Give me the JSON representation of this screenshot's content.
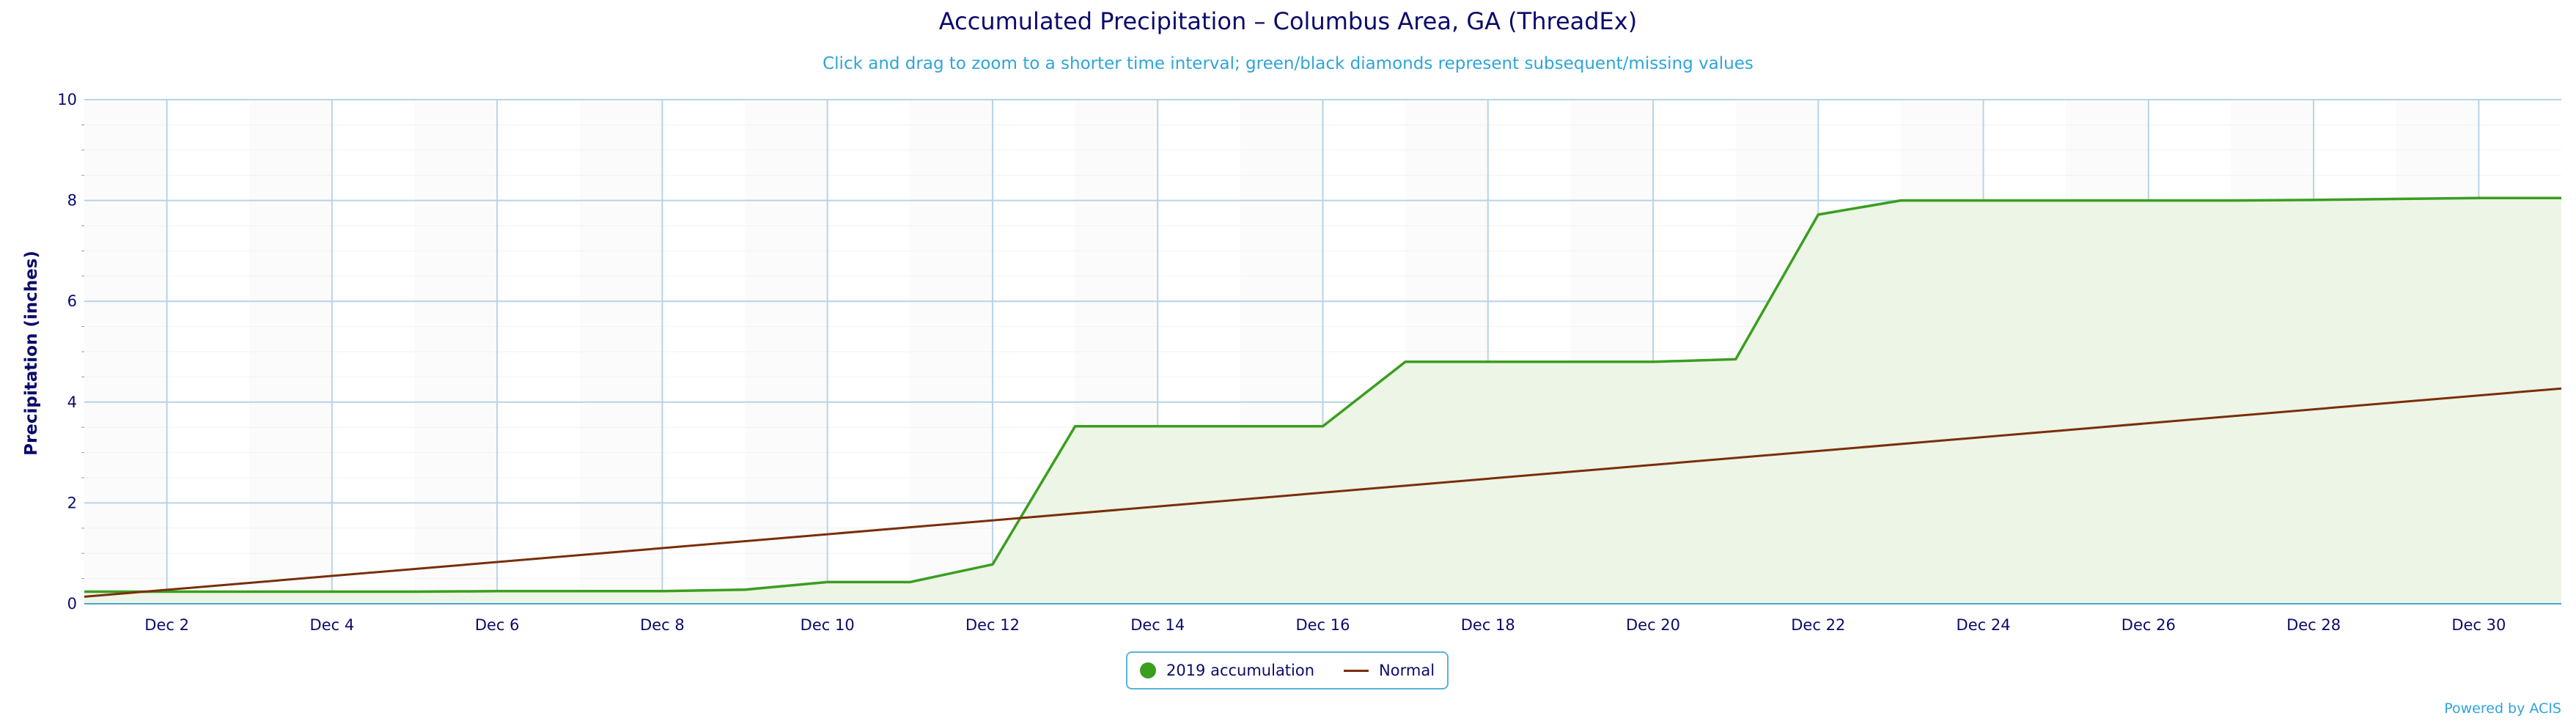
{
  "chart_data": {
    "type": "area",
    "title": "Accumulated Precipitation – Columbus Area, GA (ThreadEx)",
    "subtitle": "Click and drag to zoom to a shorter time interval; green/black diamonds represent subsequent/missing values",
    "ylabel": "Precipitation (inches)",
    "xlabel": "",
    "ylim": [
      0,
      10
    ],
    "yticks": [
      0,
      2,
      4,
      6,
      8,
      10
    ],
    "xlim": [
      1,
      31
    ],
    "xticks": [
      2,
      4,
      6,
      8,
      10,
      12,
      14,
      16,
      18,
      20,
      22,
      24,
      26,
      28,
      30
    ],
    "xtick_labels": [
      "Dec 2",
      "Dec 4",
      "Dec 6",
      "Dec 8",
      "Dec 10",
      "Dec 12",
      "Dec 14",
      "Dec 16",
      "Dec 18",
      "Dec 20",
      "Dec 22",
      "Dec 24",
      "Dec 26",
      "Dec 28",
      "Dec 30"
    ],
    "grid": true,
    "legend_position": "bottom-center",
    "series": [
      {
        "name": "2019 accumulation",
        "color": "#3a9e1f",
        "fill": "#edf5e6",
        "x": [
          1,
          2,
          3,
          4,
          5,
          6,
          7,
          8,
          9,
          10,
          11,
          12,
          13,
          14,
          15,
          16,
          17,
          18,
          19,
          20,
          21,
          22,
          23,
          24,
          25,
          26,
          27,
          28,
          29,
          30,
          31
        ],
        "values": [
          0.24,
          0.24,
          0.24,
          0.24,
          0.24,
          0.25,
          0.25,
          0.25,
          0.28,
          0.43,
          0.43,
          0.78,
          3.52,
          3.52,
          3.52,
          3.52,
          4.8,
          4.8,
          4.8,
          4.8,
          4.85,
          7.72,
          8.0,
          8.0,
          8.0,
          8.0,
          8.0,
          8.01,
          8.03,
          8.05,
          8.05
        ]
      },
      {
        "name": "Normal",
        "color": "#7a2e0a",
        "x": [
          1,
          31
        ],
        "values": [
          0.14,
          4.27
        ]
      }
    ]
  },
  "credits": "Powered by ACIS"
}
